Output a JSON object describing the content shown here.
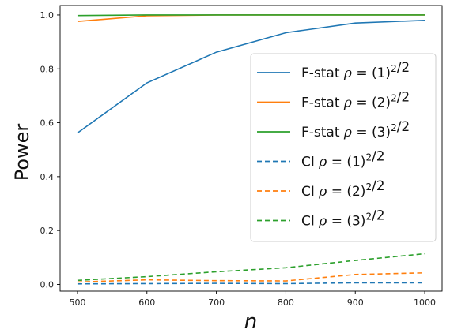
{
  "chart_data": {
    "type": "line",
    "xlabel": "n",
    "ylabel": "Power",
    "x": [
      500,
      600,
      700,
      800,
      900,
      1000
    ],
    "xlim": [
      475,
      1025
    ],
    "ylim": [
      -0.025,
      1.035
    ],
    "xticks": [
      "500",
      "600",
      "700",
      "800",
      "900",
      "1000"
    ],
    "yticks": [
      "0.0",
      "0.2",
      "0.4",
      "0.6",
      "0.8",
      "1.0"
    ],
    "grid": false,
    "legend_position": "right",
    "series": [
      {
        "name": "F-stat ρ = (1)²/2",
        "label_prefix": "F-stat",
        "k": "1",
        "color": "#1f77b4",
        "style": "solid",
        "values": [
          0.562,
          0.748,
          0.862,
          0.934,
          0.97,
          0.98
        ]
      },
      {
        "name": "F-stat ρ = (2)²/2",
        "label_prefix": "F-stat",
        "k": "2",
        "color": "#ff7f0e",
        "style": "solid",
        "values": [
          0.976,
          0.997,
          1.0,
          1.0,
          1.0,
          1.0
        ]
      },
      {
        "name": "F-stat ρ = (3)²/2",
        "label_prefix": "F-stat",
        "k": "3",
        "color": "#2ca02c",
        "style": "solid",
        "values": [
          0.998,
          1.0,
          1.0,
          1.0,
          1.0,
          1.0
        ]
      },
      {
        "name": "CI ρ = (1)²/2",
        "label_prefix": "CI",
        "k": "1",
        "color": "#1f77b4",
        "style": "dashed",
        "values": [
          0.002,
          0.003,
          0.004,
          0.003,
          0.006,
          0.006
        ]
      },
      {
        "name": "CI ρ = (2)²/2",
        "label_prefix": "CI",
        "k": "2",
        "color": "#ff7f0e",
        "style": "dashed",
        "values": [
          0.009,
          0.017,
          0.014,
          0.013,
          0.037,
          0.043
        ]
      },
      {
        "name": "CI ρ = (3)²/2",
        "label_prefix": "CI",
        "k": "3",
        "color": "#2ca02c",
        "style": "dashed",
        "values": [
          0.015,
          0.029,
          0.047,
          0.062,
          0.089,
          0.114
        ]
      }
    ]
  }
}
